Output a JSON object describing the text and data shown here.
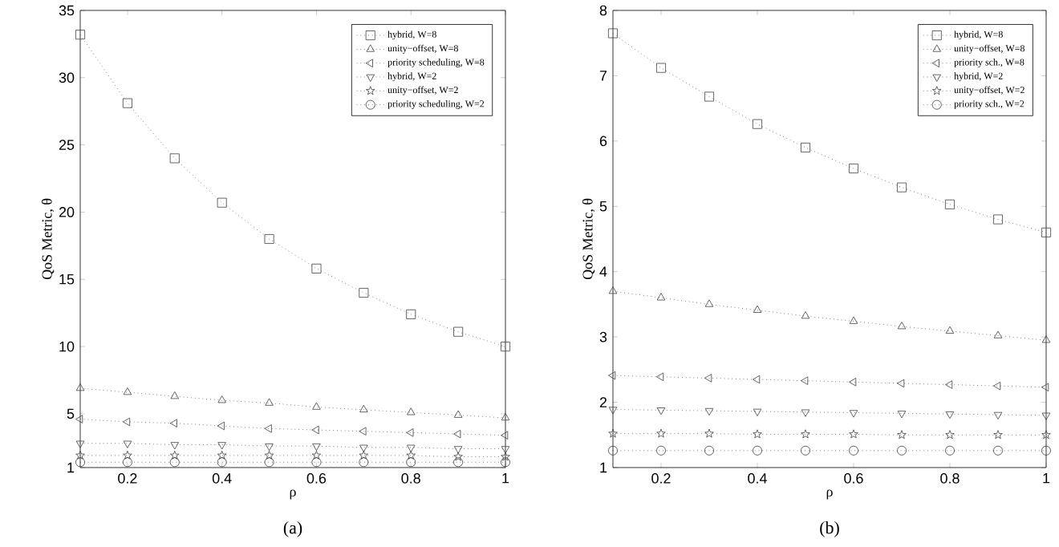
{
  "chart_data": [
    {
      "type": "line",
      "xlabel": "ρ",
      "ylabel": "QoS Metric, θ",
      "annotations": [
        "(a)"
      ],
      "x": [
        0.1,
        0.2,
        0.3,
        0.4,
        0.5,
        0.6,
        0.7,
        0.8,
        0.9,
        1.0
      ],
      "xlim": [
        0.1,
        1
      ],
      "xticks": [
        0.2,
        0.4,
        0.6,
        0.8,
        1
      ],
      "ylim": [
        1,
        35
      ],
      "yticks": [
        1,
        5,
        10,
        15,
        20,
        25,
        30,
        35
      ],
      "legend": "top right",
      "line_style": "dotted",
      "series": [
        {
          "name": "hybrid, W=8",
          "color": "#404040",
          "marker": "square",
          "values": [
            33.2,
            28.1,
            24.0,
            20.7,
            18.0,
            15.8,
            14.0,
            12.4,
            11.1,
            10.0
          ]
        },
        {
          "name": "unity−offset, W=8",
          "color": "#404040",
          "marker": "triangle",
          "values": [
            6.9,
            6.6,
            6.3,
            6.0,
            5.8,
            5.5,
            5.3,
            5.1,
            4.9,
            4.7
          ]
        },
        {
          "name": "priority scheduling, W=8",
          "color": "#404040",
          "marker": "triangle-left",
          "values": [
            4.6,
            4.4,
            4.3,
            4.1,
            3.9,
            3.8,
            3.7,
            3.6,
            3.5,
            3.4
          ]
        },
        {
          "name": "hybrid, W=2",
          "color": "#404040",
          "marker": "triangle-down",
          "values": [
            2.8,
            2.8,
            2.7,
            2.7,
            2.6,
            2.6,
            2.5,
            2.5,
            2.4,
            2.4
          ]
        },
        {
          "name": "unity−offset, W=2",
          "color": "#404040",
          "marker": "star",
          "values": [
            1.9,
            1.9,
            1.9,
            1.9,
            1.9,
            1.9,
            1.9,
            1.9,
            1.8,
            1.8
          ]
        },
        {
          "name": "priority scheduling, W=2",
          "color": "#404040",
          "marker": "circle",
          "values": [
            1.4,
            1.4,
            1.4,
            1.4,
            1.4,
            1.4,
            1.4,
            1.4,
            1.4,
            1.4
          ]
        }
      ]
    },
    {
      "type": "line",
      "xlabel": "ρ",
      "ylabel": "QoS Metric, θ",
      "annotations": [
        "(b)"
      ],
      "x": [
        0.1,
        0.2,
        0.3,
        0.4,
        0.5,
        0.6,
        0.7,
        0.8,
        0.9,
        1.0
      ],
      "xlim": [
        0.1,
        1
      ],
      "xticks": [
        0.2,
        0.4,
        0.6,
        0.8,
        1
      ],
      "ylim": [
        1,
        8
      ],
      "yticks": [
        1,
        2,
        3,
        4,
        5,
        6,
        7,
        8
      ],
      "legend": "top right",
      "line_style": "dotted",
      "series": [
        {
          "name": "hybrid, W=8",
          "color": "#404040",
          "marker": "square",
          "values": [
            7.65,
            7.12,
            6.68,
            6.26,
            5.9,
            5.58,
            5.29,
            5.03,
            4.8,
            4.6
          ]
        },
        {
          "name": "unity−offset, W=8",
          "color": "#404040",
          "marker": "triangle",
          "values": [
            3.7,
            3.6,
            3.5,
            3.41,
            3.32,
            3.24,
            3.16,
            3.09,
            3.02,
            2.95
          ]
        },
        {
          "name": "priority sch., W=8",
          "color": "#404040",
          "marker": "triangle-left",
          "values": [
            2.41,
            2.39,
            2.37,
            2.35,
            2.33,
            2.31,
            2.29,
            2.27,
            2.25,
            2.23
          ]
        },
        {
          "name": "hybrid, W=2",
          "color": "#404040",
          "marker": "triangle-down",
          "values": [
            1.89,
            1.88,
            1.87,
            1.86,
            1.85,
            1.84,
            1.83,
            1.82,
            1.81,
            1.8
          ]
        },
        {
          "name": "unity−offset, W=2",
          "color": "#404040",
          "marker": "star",
          "values": [
            1.52,
            1.52,
            1.52,
            1.51,
            1.51,
            1.51,
            1.5,
            1.5,
            1.5,
            1.5
          ]
        },
        {
          "name": "priority sch., W=2",
          "color": "#404040",
          "marker": "circle",
          "values": [
            1.26,
            1.26,
            1.26,
            1.26,
            1.26,
            1.26,
            1.26,
            1.26,
            1.26,
            1.26
          ]
        }
      ]
    }
  ]
}
